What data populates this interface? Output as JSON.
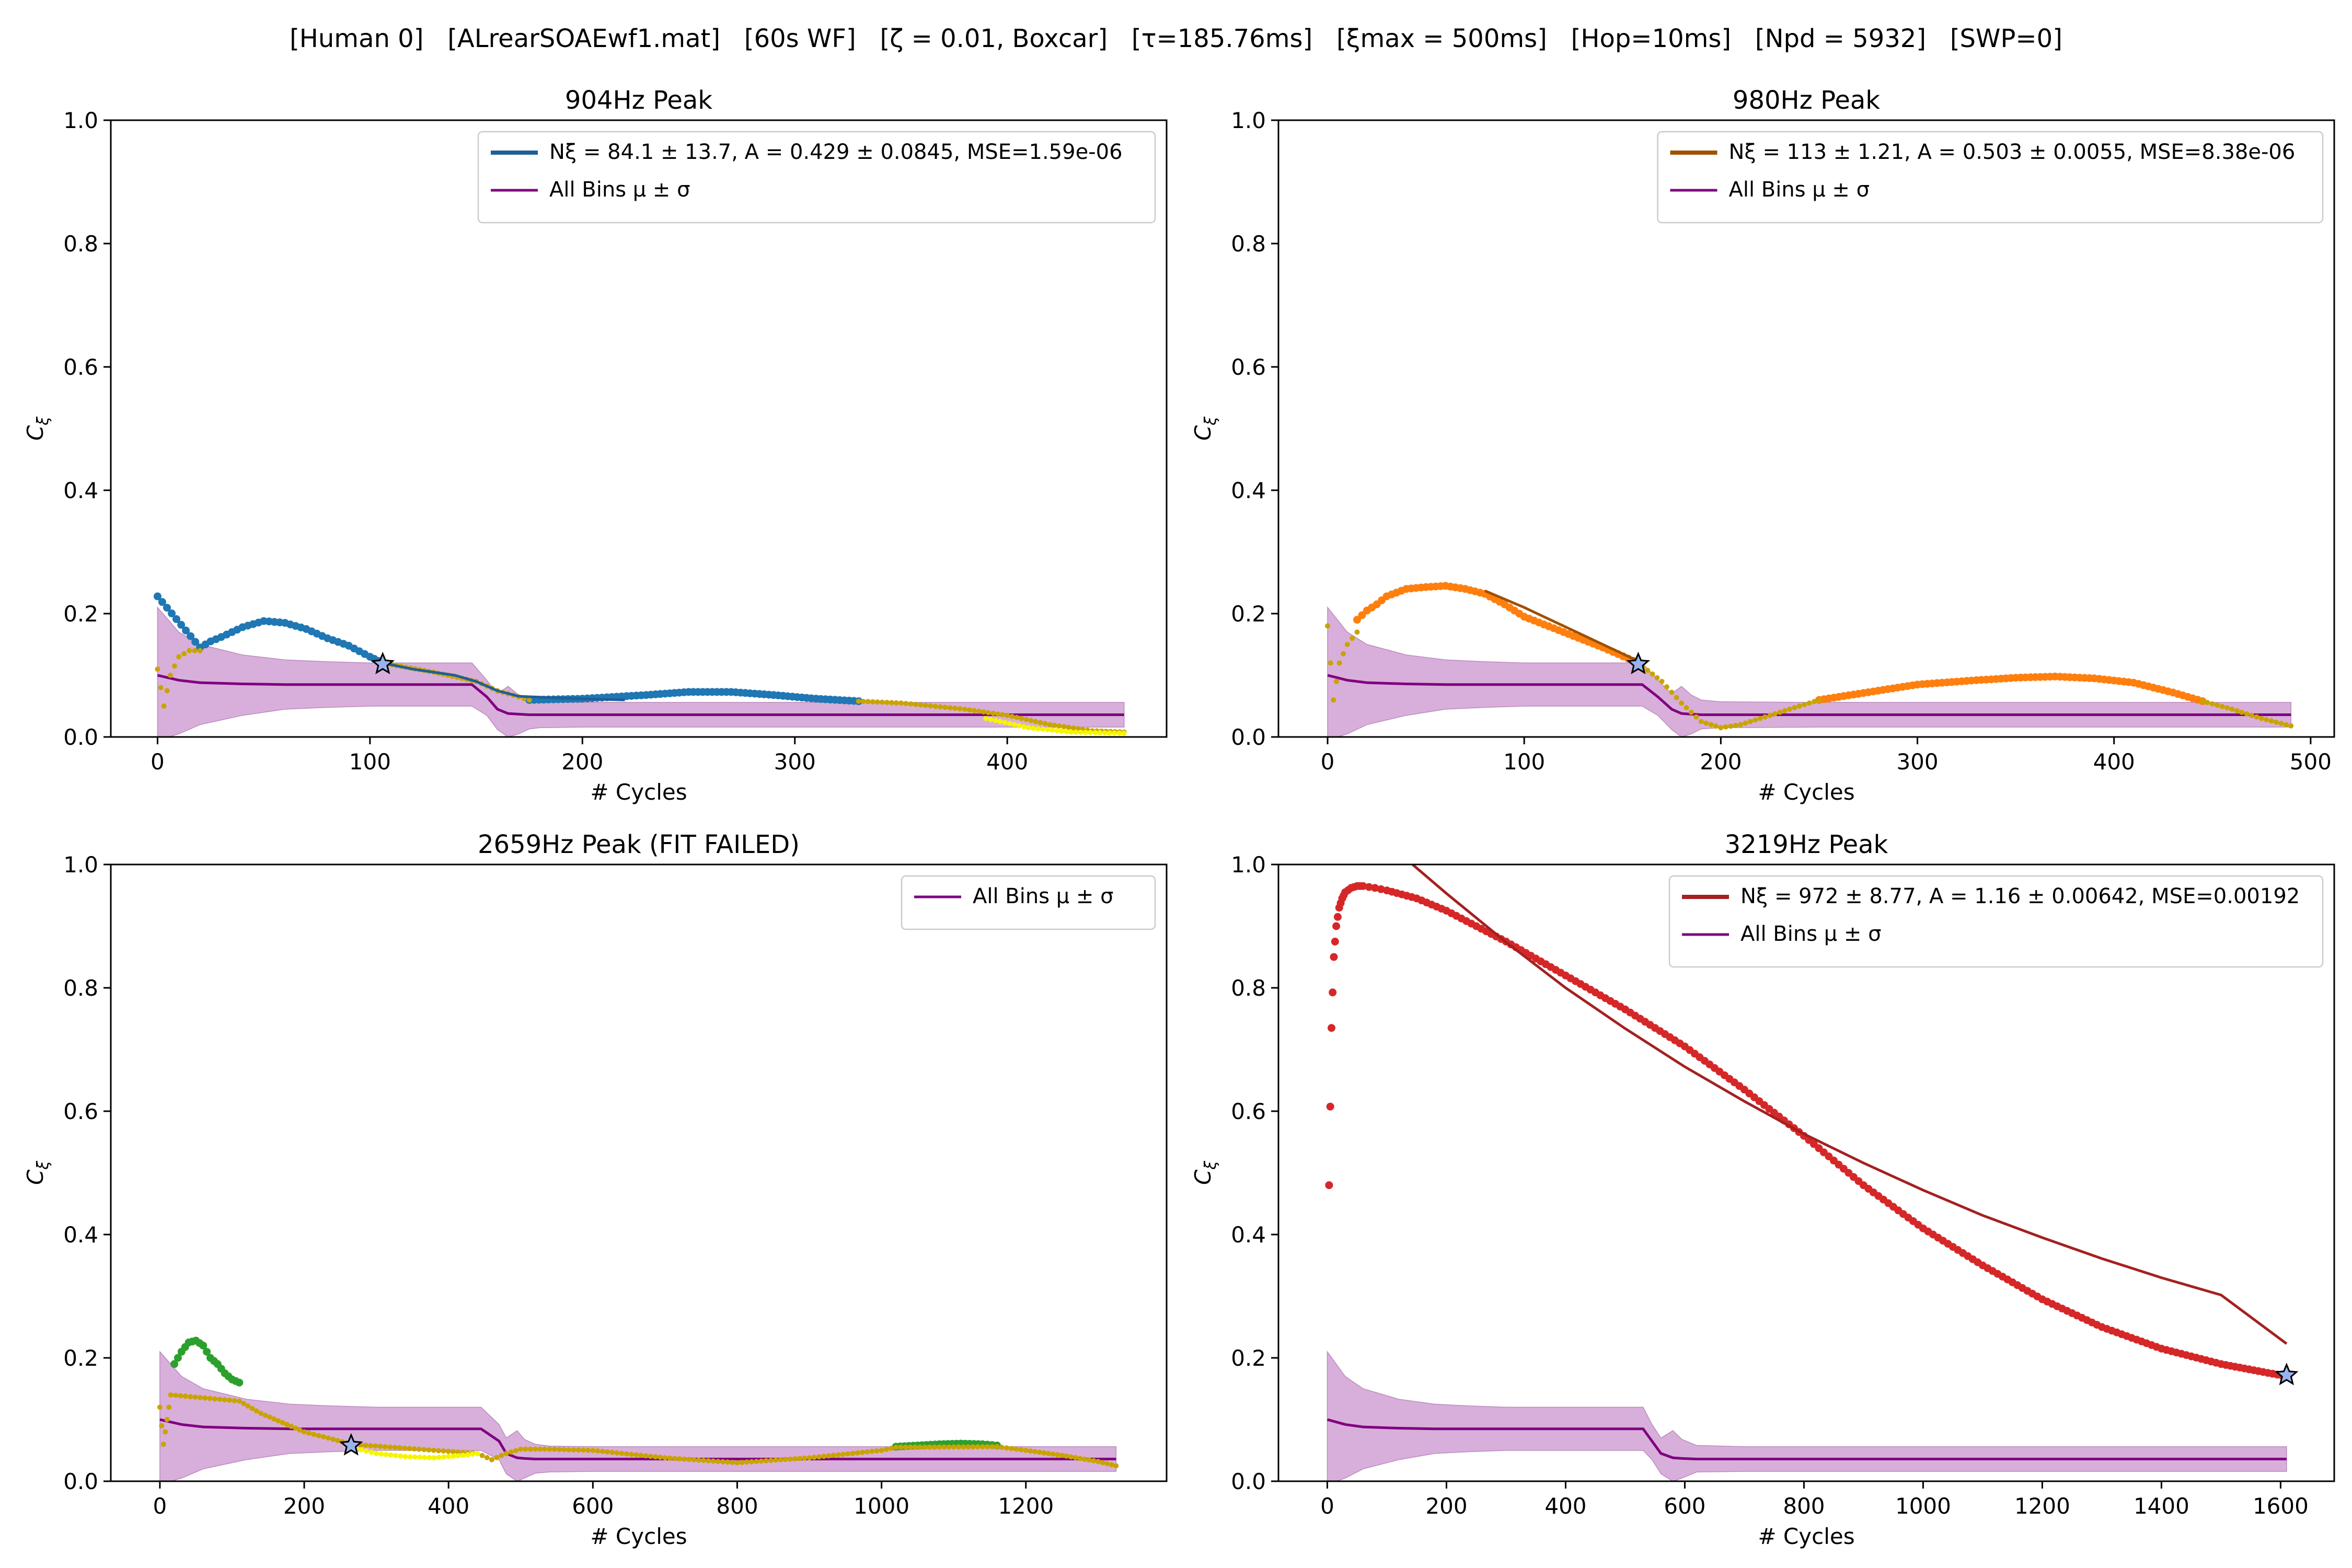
{
  "figure": {
    "suptitle": "[Human 0]   [ALrearSOAEwf1.mat]   [60s WF]   [ζ = 0.01, Boxcar]   [τ=185.76ms]   [ξmax = 500ms]   [Hop=10ms]   [Npd = 5932]   [SWP=0]",
    "colors": {
      "envelope_band": "#d4a6d6",
      "envelope_line": "#800080",
      "star_fill": "#9ab3ef",
      "below_noise_fill": "#c9a400",
      "below_noise_yellow": "#f5f500"
    }
  },
  "chart_data": [
    {
      "type": "scatter",
      "title": "904Hz Peak",
      "xlabel": "# Cycles",
      "ylabel": "Cξ",
      "xlim": [
        -22,
        475
      ],
      "ylim": [
        0,
        1
      ],
      "xticks": [
        0,
        100,
        200,
        300,
        400
      ],
      "yticks": [
        0.0,
        0.2,
        0.4,
        0.6,
        0.8,
        1.0
      ],
      "legend_position": "top-right",
      "point_color": "#1f77b4",
      "fit_color": "#1f5f96",
      "legend": [
        {
          "label": "Nξ = 84.1 ± 13.7, A = 0.429 ± 0.0845, MSE=1.59e-06",
          "kind": "fit"
        },
        {
          "label": "All Bins μ ± σ",
          "kind": "envelope"
        }
      ],
      "envelope": {
        "x": [
          0,
          5,
          10,
          20,
          40,
          60,
          80,
          100,
          120,
          140,
          148,
          155,
          160,
          165,
          170,
          175,
          180,
          200,
          250,
          300,
          350,
          400,
          455
        ],
        "mean": [
          0.1,
          0.096,
          0.092,
          0.088,
          0.086,
          0.085,
          0.085,
          0.085,
          0.085,
          0.085,
          0.085,
          0.065,
          0.045,
          0.038,
          0.037,
          0.036,
          0.036,
          0.036,
          0.036,
          0.036,
          0.036,
          0.036,
          0.036
        ],
        "upper": [
          0.21,
          0.19,
          0.17,
          0.15,
          0.133,
          0.125,
          0.122,
          0.12,
          0.12,
          0.12,
          0.12,
          0.092,
          0.07,
          0.082,
          0.068,
          0.06,
          0.057,
          0.056,
          0.056,
          0.056,
          0.056,
          0.056,
          0.056
        ],
        "lower": [
          0.0,
          0.0,
          0.005,
          0.02,
          0.035,
          0.045,
          0.048,
          0.05,
          0.05,
          0.05,
          0.05,
          0.035,
          0.012,
          0.0,
          0.005,
          0.013,
          0.015,
          0.016,
          0.016,
          0.016,
          0.016,
          0.016,
          0.016
        ]
      },
      "series": [
        {
          "kind": "above_noise",
          "color": "#1f77b4",
          "x": [
            0,
            20,
            25,
            30,
            40,
            50,
            60,
            70,
            80,
            90,
            100,
            106
          ],
          "y": [
            0.228,
            0.145,
            0.155,
            0.162,
            0.178,
            0.188,
            0.185,
            0.175,
            0.16,
            0.148,
            0.13,
            0.12
          ]
        },
        {
          "kind": "above_noise",
          "color": "#1f77b4",
          "x": [
            175,
            200,
            230,
            250,
            270,
            290,
            310,
            330
          ],
          "y": [
            0.06,
            0.062,
            0.068,
            0.073,
            0.073,
            0.068,
            0.062,
            0.058
          ]
        },
        {
          "kind": "below_noise",
          "color": "#c9a400",
          "x": [
            0,
            3,
            6,
            10,
            15,
            20,
            106,
            130,
            150,
            160,
            170,
            175,
            330,
            350,
            380,
            400,
            420,
            440,
            455
          ],
          "y": [
            0.11,
            0.05,
            0.1,
            0.13,
            0.14,
            0.14,
            0.12,
            0.105,
            0.09,
            0.075,
            0.065,
            0.06,
            0.058,
            0.055,
            0.045,
            0.035,
            0.02,
            0.01,
            0.008
          ]
        },
        {
          "kind": "below_noise_yellow",
          "color": "#f5f500",
          "x": [
            390,
            410,
            430,
            455
          ],
          "y": [
            0.03,
            0.015,
            0.008,
            0.006
          ]
        }
      ],
      "fit": {
        "x": [
          106,
          120,
          140,
          150,
          160,
          170,
          190,
          220
        ],
        "y": [
          0.12,
          0.11,
          0.1,
          0.09,
          0.075,
          0.066,
          0.063,
          0.06
        ]
      },
      "star": {
        "x": 106,
        "y": 0.118
      }
    },
    {
      "type": "scatter",
      "title": "980Hz Peak",
      "xlabel": "# Cycles",
      "ylabel": "Cξ",
      "xlim": [
        -25,
        512
      ],
      "ylim": [
        0,
        1
      ],
      "xticks": [
        0,
        100,
        200,
        300,
        400,
        500
      ],
      "yticks": [
        0.0,
        0.2,
        0.4,
        0.6,
        0.8,
        1.0
      ],
      "legend_position": "top-right",
      "point_color": "#ff7f0e",
      "fit_color": "#a05000",
      "legend": [
        {
          "label": "Nξ = 113 ± 1.21, A = 0.503 ± 0.0055, MSE=8.38e-06",
          "kind": "fit"
        },
        {
          "label": "All Bins μ ± σ",
          "kind": "envelope"
        }
      ],
      "envelope": {
        "x": [
          0,
          5,
          10,
          20,
          40,
          60,
          80,
          100,
          120,
          150,
          160,
          168,
          175,
          180,
          185,
          190,
          200,
          250,
          300,
          350,
          400,
          450,
          490
        ],
        "mean": [
          0.1,
          0.096,
          0.092,
          0.088,
          0.086,
          0.085,
          0.085,
          0.085,
          0.085,
          0.085,
          0.085,
          0.065,
          0.045,
          0.038,
          0.037,
          0.036,
          0.036,
          0.036,
          0.036,
          0.036,
          0.036,
          0.036,
          0.036
        ],
        "upper": [
          0.21,
          0.19,
          0.17,
          0.15,
          0.133,
          0.125,
          0.122,
          0.12,
          0.12,
          0.12,
          0.12,
          0.092,
          0.07,
          0.082,
          0.068,
          0.06,
          0.057,
          0.056,
          0.056,
          0.056,
          0.056,
          0.056,
          0.056
        ],
        "lower": [
          0.0,
          0.0,
          0.005,
          0.02,
          0.035,
          0.045,
          0.048,
          0.05,
          0.05,
          0.05,
          0.05,
          0.035,
          0.012,
          0.0,
          0.005,
          0.013,
          0.015,
          0.016,
          0.016,
          0.016,
          0.016,
          0.016,
          0.016
        ]
      },
      "series": [
        {
          "kind": "above_noise",
          "color": "#ff7f0e",
          "x": [
            15,
            20,
            25,
            30,
            40,
            50,
            60,
            70,
            80,
            90,
            100,
            120,
            140,
            158
          ],
          "y": [
            0.19,
            0.205,
            0.215,
            0.228,
            0.24,
            0.243,
            0.245,
            0.24,
            0.232,
            0.215,
            0.195,
            0.17,
            0.145,
            0.12
          ]
        },
        {
          "kind": "above_noise",
          "color": "#ff7f0e",
          "x": [
            250,
            280,
            300,
            330,
            350,
            370,
            390,
            410,
            430,
            445
          ],
          "y": [
            0.06,
            0.075,
            0.085,
            0.092,
            0.096,
            0.098,
            0.095,
            0.088,
            0.072,
            0.058
          ]
        },
        {
          "kind": "below_noise",
          "color": "#c9a400",
          "x": [
            0,
            3,
            6,
            10,
            15,
            158,
            170,
            180,
            190,
            200,
            210,
            220,
            235,
            250,
            445,
            460,
            475,
            490
          ],
          "y": [
            0.18,
            0.06,
            0.12,
            0.15,
            0.17,
            0.12,
            0.09,
            0.055,
            0.025,
            0.015,
            0.02,
            0.03,
            0.045,
            0.06,
            0.058,
            0.045,
            0.03,
            0.018
          ]
        }
      ],
      "fit": {
        "x": [
          80,
          100,
          120,
          140,
          158
        ],
        "y": [
          0.237,
          0.21,
          0.18,
          0.15,
          0.123
        ]
      },
      "star": {
        "x": 158,
        "y": 0.118
      }
    },
    {
      "type": "scatter",
      "title": "2659Hz Peak (FIT FAILED)",
      "xlabel": "# Cycles",
      "ylabel": "Cξ",
      "xlim": [
        -68,
        1395
      ],
      "ylim": [
        0,
        1
      ],
      "xticks": [
        0,
        200,
        400,
        600,
        800,
        1000,
        1200
      ],
      "yticks": [
        0.0,
        0.2,
        0.4,
        0.6,
        0.8,
        1.0
      ],
      "legend_position": "top-right",
      "point_color": "#2ca02c",
      "fit_color": "",
      "legend": [
        {
          "label": "All Bins μ ± σ",
          "kind": "envelope"
        }
      ],
      "envelope": {
        "x": [
          0,
          15,
          30,
          60,
          120,
          180,
          240,
          300,
          360,
          420,
          445,
          470,
          480,
          495,
          505,
          520,
          540,
          600,
          750,
          900,
          1050,
          1200,
          1325
        ],
        "mean": [
          0.1,
          0.096,
          0.092,
          0.088,
          0.086,
          0.085,
          0.085,
          0.085,
          0.085,
          0.085,
          0.085,
          0.065,
          0.045,
          0.038,
          0.037,
          0.036,
          0.036,
          0.036,
          0.036,
          0.036,
          0.036,
          0.036,
          0.036
        ],
        "upper": [
          0.21,
          0.19,
          0.17,
          0.15,
          0.133,
          0.125,
          0.122,
          0.12,
          0.12,
          0.12,
          0.12,
          0.092,
          0.07,
          0.082,
          0.068,
          0.06,
          0.057,
          0.056,
          0.056,
          0.056,
          0.056,
          0.056,
          0.056
        ],
        "lower": [
          0.0,
          0.0,
          0.005,
          0.02,
          0.035,
          0.045,
          0.048,
          0.05,
          0.05,
          0.05,
          0.05,
          0.035,
          0.012,
          0.0,
          0.005,
          0.013,
          0.015,
          0.016,
          0.016,
          0.016,
          0.016,
          0.016,
          0.016
        ]
      },
      "series": [
        {
          "kind": "above_noise",
          "color": "#2ca02c",
          "x": [
            20,
            30,
            40,
            50,
            60,
            70,
            80,
            90,
            100,
            110
          ],
          "y": [
            0.19,
            0.21,
            0.225,
            0.228,
            0.22,
            0.2,
            0.19,
            0.175,
            0.165,
            0.16
          ]
        },
        {
          "kind": "above_noise",
          "color": "#2ca02c",
          "x": [
            1020,
            1050,
            1080,
            1110,
            1140,
            1160
          ],
          "y": [
            0.056,
            0.058,
            0.06,
            0.061,
            0.06,
            0.058
          ]
        },
        {
          "kind": "below_noise",
          "color": "#c9a400",
          "x": [
            0,
            5,
            10,
            15,
            110,
            140,
            170,
            200,
            240,
            265,
            440,
            460,
            480,
            500,
            540,
            600,
            700,
            800,
            900,
            1000,
            1020,
            1160,
            1200,
            1250,
            1300,
            1325
          ],
          "y": [
            0.12,
            0.06,
            0.1,
            0.14,
            0.13,
            0.11,
            0.095,
            0.08,
            0.068,
            0.06,
            0.045,
            0.035,
            0.045,
            0.052,
            0.052,
            0.05,
            0.038,
            0.03,
            0.038,
            0.05,
            0.055,
            0.056,
            0.05,
            0.042,
            0.032,
            0.025
          ]
        },
        {
          "kind": "below_noise_yellow",
          "color": "#f5f500",
          "x": [
            265,
            300,
            340,
            380,
            420,
            440
          ],
          "y": [
            0.055,
            0.045,
            0.04,
            0.038,
            0.042,
            0.045
          ]
        }
      ],
      "fit": {
        "x": [],
        "y": []
      },
      "star": {
        "x": 265,
        "y": 0.058
      }
    },
    {
      "type": "scatter",
      "title": "3219Hz Peak",
      "xlabel": "# Cycles",
      "ylabel": "Cξ",
      "xlim": [
        -82,
        1690
      ],
      "ylim": [
        0,
        1
      ],
      "xticks": [
        0,
        200,
        400,
        600,
        800,
        1000,
        1200,
        1400,
        1600
      ],
      "yticks": [
        0.0,
        0.2,
        0.4,
        0.6,
        0.8,
        1.0
      ],
      "legend_position": "top-right",
      "point_color": "#d62728",
      "fit_color": "#a52020",
      "legend": [
        {
          "label": "Nξ = 972 ± 8.77, A = 1.16 ± 0.00642, MSE=0.00192",
          "kind": "fit"
        },
        {
          "label": "All Bins μ ± σ",
          "kind": "envelope"
        }
      ],
      "envelope": {
        "x": [
          0,
          15,
          30,
          60,
          120,
          180,
          240,
          300,
          360,
          420,
          480,
          530,
          545,
          560,
          580,
          595,
          620,
          700,
          900,
          1100,
          1300,
          1500,
          1610
        ],
        "mean": [
          0.1,
          0.096,
          0.092,
          0.088,
          0.086,
          0.085,
          0.085,
          0.085,
          0.085,
          0.085,
          0.085,
          0.085,
          0.065,
          0.045,
          0.038,
          0.037,
          0.036,
          0.036,
          0.036,
          0.036,
          0.036,
          0.036,
          0.036
        ],
        "upper": [
          0.21,
          0.19,
          0.17,
          0.15,
          0.133,
          0.125,
          0.122,
          0.12,
          0.12,
          0.12,
          0.12,
          0.12,
          0.092,
          0.07,
          0.082,
          0.068,
          0.058,
          0.056,
          0.056,
          0.056,
          0.056,
          0.056,
          0.056
        ],
        "lower": [
          0.0,
          0.0,
          0.005,
          0.02,
          0.035,
          0.045,
          0.048,
          0.05,
          0.05,
          0.05,
          0.05,
          0.05,
          0.035,
          0.012,
          0.0,
          0.005,
          0.015,
          0.016,
          0.016,
          0.016,
          0.016,
          0.016,
          0.016
        ]
      },
      "series": [
        {
          "kind": "above_noise",
          "color": "#d62728",
          "x": [
            3,
            7,
            11,
            15,
            20,
            25,
            30,
            40,
            50,
            60,
            80,
            100,
            150,
            200,
            300,
            400,
            500,
            600,
            700,
            800,
            900,
            1000,
            1100,
            1200,
            1300,
            1400,
            1500,
            1610
          ],
          "y": [
            0.48,
            0.735,
            0.85,
            0.9,
            0.93,
            0.945,
            0.955,
            0.962,
            0.965,
            0.965,
            0.962,
            0.958,
            0.945,
            0.925,
            0.875,
            0.82,
            0.765,
            0.705,
            0.635,
            0.56,
            0.48,
            0.41,
            0.35,
            0.295,
            0.25,
            0.215,
            0.19,
            0.17
          ]
        }
      ],
      "fit": {
        "x": [
          143,
          200,
          300,
          400,
          500,
          600,
          700,
          800,
          900,
          1000,
          1100,
          1200,
          1300,
          1400,
          1500,
          1610
        ],
        "y": [
          1.0,
          0.953,
          0.874,
          0.8,
          0.734,
          0.672,
          0.616,
          0.563,
          0.516,
          0.472,
          0.431,
          0.395,
          0.361,
          0.33,
          0.302,
          0.223
        ]
      },
      "star": {
        "x": 1610,
        "y": 0.172
      }
    }
  ]
}
